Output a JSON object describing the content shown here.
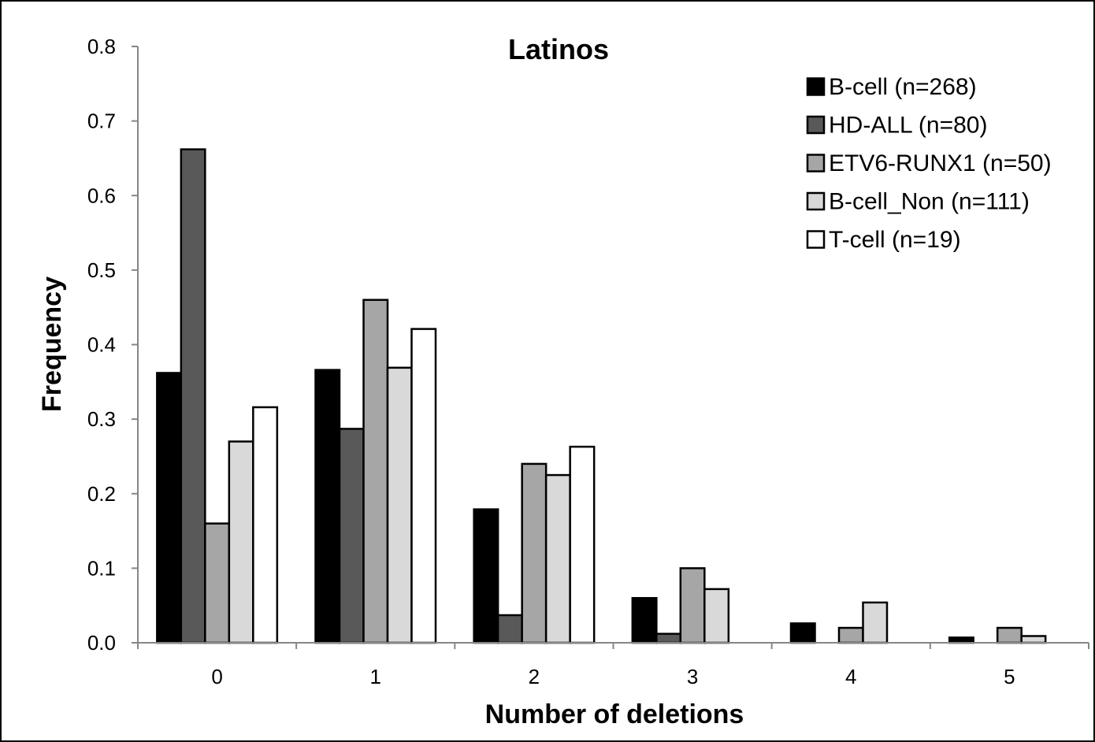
{
  "chart_data": {
    "type": "bar",
    "title": "Latinos",
    "xlabel": "Number of deletions",
    "ylabel": "Frequency",
    "categories": [
      "0",
      "1",
      "2",
      "3",
      "4",
      "5"
    ],
    "ylim": [
      0,
      0.8
    ],
    "yticks": [
      "0.0",
      "0.1",
      "0.2",
      "0.3",
      "0.4",
      "0.5",
      "0.6",
      "0.7",
      "0.8"
    ],
    "grid": false,
    "legend_position": "top-right",
    "series": [
      {
        "name": "B-cell (n=268)",
        "color": "#000000",
        "values": [
          0.362,
          0.366,
          0.179,
          0.06,
          0.026,
          0.007
        ]
      },
      {
        "name": "HD-ALL (n=80)",
        "color": "#595959",
        "values": [
          0.662,
          0.287,
          0.037,
          0.012,
          0,
          0
        ]
      },
      {
        "name": "ETV6-RUNX1 (n=50)",
        "color": "#a6a6a6",
        "values": [
          0.16,
          0.46,
          0.24,
          0.1,
          0.02,
          0.02
        ]
      },
      {
        "name": "B-cell_Non (n=111)",
        "color": "#d9d9d9",
        "values": [
          0.27,
          0.369,
          0.225,
          0.072,
          0.054,
          0.009
        ]
      },
      {
        "name": "T-cell (n=19)",
        "color": "#ffffff",
        "values": [
          0.316,
          0.421,
          0.263,
          0,
          0,
          0
        ]
      }
    ]
  }
}
